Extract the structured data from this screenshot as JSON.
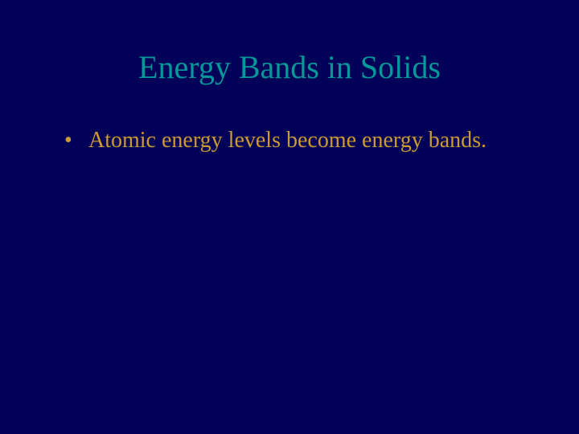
{
  "slide": {
    "background_color": "#000058",
    "title": {
      "text": "Energy Bands in Solids",
      "color": "#009999",
      "fontsize": 40,
      "font_family": "Times New Roman"
    },
    "bullets": [
      {
        "text": "Atomic energy levels become energy bands.",
        "color": "#cc9933",
        "fontsize": 28
      }
    ]
  }
}
